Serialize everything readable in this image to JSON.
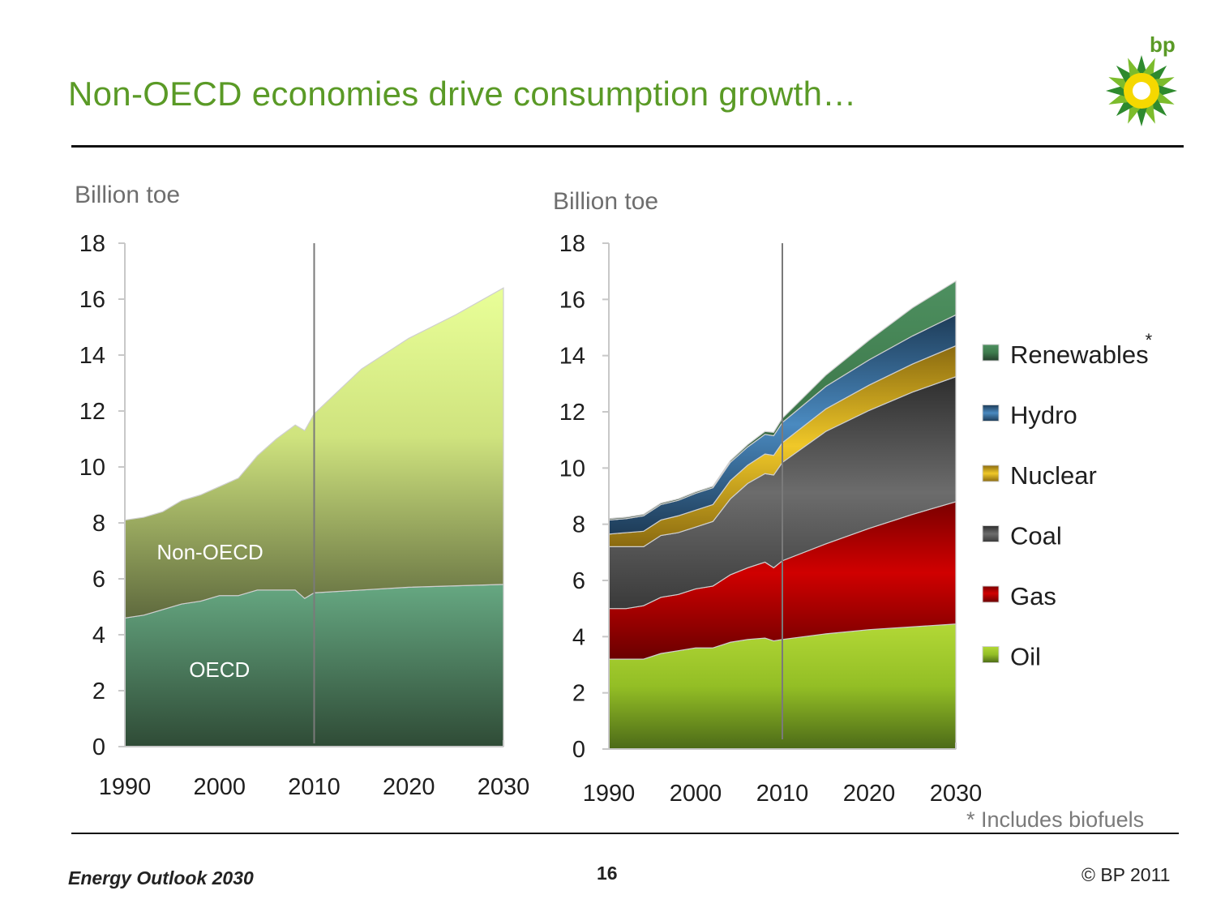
{
  "slide": {
    "title": "Non-OECD economies drive consumption growth…",
    "footer_left": "Energy Outlook 2030",
    "page_number": "16",
    "copyright": "© BP 2011",
    "footnote": "* Includes biofuels",
    "logo_text": "bp"
  },
  "colors": {
    "title": "#5a9a26",
    "oecd": "#5fa07a",
    "non_oecd": "#d6ec8a",
    "oil": "#9bc42a",
    "gas": "#c40000",
    "coal": "#5e5e5e",
    "nuclear": "#e0b820",
    "hydro": "#3a78a8",
    "renewables": "#3c7a4a"
  },
  "chart_data": [
    {
      "type": "area",
      "stacked": true,
      "ylabel": "Billion toe",
      "ylim": [
        0,
        18
      ],
      "yticks": [
        "0",
        "2",
        "4",
        "6",
        "8",
        "10",
        "12",
        "14",
        "16",
        "18"
      ],
      "xticks": [
        "1990",
        "2000",
        "2010",
        "2020",
        "2030"
      ],
      "divider_x": 2010,
      "x": [
        1990,
        1992,
        1994,
        1996,
        1998,
        2000,
        2002,
        2004,
        2006,
        2008,
        2009,
        2010,
        2015,
        2020,
        2025,
        2030
      ],
      "series": [
        {
          "name": "OECD",
          "color_key": "oecd",
          "values": [
            4.6,
            4.7,
            4.9,
            5.1,
            5.2,
            5.4,
            5.4,
            5.6,
            5.6,
            5.6,
            5.3,
            5.5,
            5.6,
            5.7,
            5.75,
            5.8
          ]
        },
        {
          "name": "Non-OECD",
          "color_key": "non_oecd",
          "values": [
            3.5,
            3.5,
            3.5,
            3.7,
            3.8,
            3.9,
            4.2,
            4.8,
            5.4,
            5.9,
            6.0,
            6.4,
            7.9,
            8.9,
            9.7,
            10.6
          ]
        }
      ]
    },
    {
      "type": "area",
      "stacked": true,
      "ylabel": "Billion toe",
      "ylim": [
        0,
        18
      ],
      "yticks": [
        "0",
        "2",
        "4",
        "6",
        "8",
        "10",
        "12",
        "14",
        "16",
        "18"
      ],
      "xticks": [
        "1990",
        "2000",
        "2010",
        "2020",
        "2030"
      ],
      "divider_x": 2010,
      "x": [
        1990,
        1992,
        1994,
        1996,
        1998,
        2000,
        2002,
        2004,
        2006,
        2008,
        2009,
        2010,
        2015,
        2020,
        2025,
        2030
      ],
      "series": [
        {
          "name": "Oil",
          "color_key": "oil",
          "values": [
            3.2,
            3.2,
            3.2,
            3.4,
            3.5,
            3.6,
            3.6,
            3.8,
            3.9,
            3.95,
            3.85,
            3.9,
            4.1,
            4.25,
            4.35,
            4.45
          ]
        },
        {
          "name": "Gas",
          "color_key": "gas",
          "values": [
            1.8,
            1.8,
            1.9,
            2.0,
            2.0,
            2.1,
            2.2,
            2.4,
            2.55,
            2.7,
            2.6,
            2.8,
            3.2,
            3.6,
            4.0,
            4.35
          ]
        },
        {
          "name": "Coal",
          "color_key": "coal",
          "values": [
            2.2,
            2.2,
            2.1,
            2.2,
            2.2,
            2.2,
            2.3,
            2.7,
            3.0,
            3.15,
            3.3,
            3.5,
            4.0,
            4.2,
            4.35,
            4.45
          ]
        },
        {
          "name": "Nuclear",
          "color_key": "nuclear",
          "values": [
            0.45,
            0.5,
            0.55,
            0.55,
            0.6,
            0.6,
            0.6,
            0.65,
            0.65,
            0.7,
            0.7,
            0.7,
            0.8,
            0.9,
            1.0,
            1.1
          ]
        },
        {
          "name": "Hydro",
          "color_key": "hydro",
          "values": [
            0.5,
            0.5,
            0.55,
            0.55,
            0.55,
            0.6,
            0.6,
            0.65,
            0.65,
            0.7,
            0.7,
            0.72,
            0.8,
            0.9,
            1.0,
            1.1
          ]
        },
        {
          "name": "Renewables",
          "name_suffix": "*",
          "color_key": "renewables",
          "values": [
            0.05,
            0.05,
            0.05,
            0.05,
            0.05,
            0.05,
            0.05,
            0.06,
            0.08,
            0.1,
            0.12,
            0.15,
            0.4,
            0.7,
            1.0,
            1.2
          ]
        }
      ]
    }
  ]
}
